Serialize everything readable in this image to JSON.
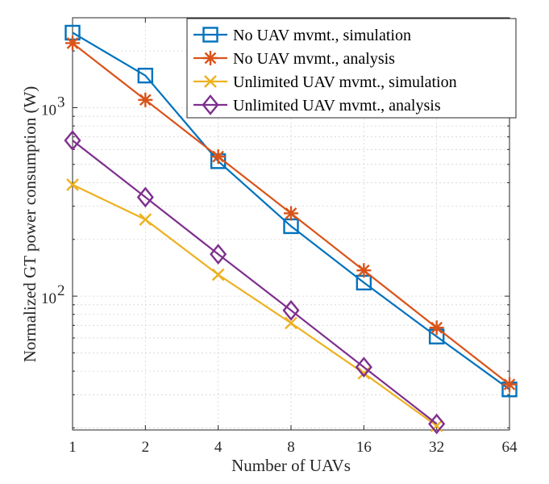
{
  "chart_data": {
    "type": "line",
    "x_scale": "log2",
    "y_scale": "log10",
    "x": [
      1,
      2,
      4,
      8,
      16,
      32,
      64
    ],
    "xticks": [
      1,
      2,
      4,
      8,
      16,
      32,
      64
    ],
    "xtick_labels": [
      "1",
      "2",
      "4",
      "8",
      "16",
      "32",
      "64"
    ],
    "xlim": [
      1,
      64
    ],
    "ylim": [
      19.5,
      3000
    ],
    "yticks": [
      {
        "value": 100,
        "base": "10",
        "exp": "2"
      },
      {
        "value": 1000,
        "base": "10",
        "exp": "3"
      }
    ],
    "xlabel": "Number of UAVs",
    "ylabel": "Normalized GT power consumption (W)",
    "grid": true,
    "legend_position": "top-right",
    "series": [
      {
        "name": "No UAV mvmt., simulation",
        "color": "#0072BD",
        "marker": "square",
        "x": [
          1,
          2,
          4,
          8,
          16,
          32,
          64
        ],
        "values": [
          2500,
          1480,
          520,
          235,
          118,
          61,
          32
        ]
      },
      {
        "name": "No UAV mvmt., analysis",
        "color": "#D95319",
        "marker": "asterisk",
        "x": [
          1,
          2,
          4,
          8,
          16,
          32,
          64
        ],
        "values": [
          2200,
          1100,
          550,
          275,
          137,
          68,
          34
        ]
      },
      {
        "name": "Unlimited UAV mvmt., simulation",
        "color": "#EDB120",
        "marker": "x",
        "x": [
          1,
          2,
          4,
          8,
          16,
          32
        ],
        "values": [
          390,
          255,
          130,
          72,
          39,
          20.5
        ]
      },
      {
        "name": "Unlimited UAV mvmt., analysis",
        "color": "#7E2F8E",
        "marker": "diamond",
        "x": [
          1,
          2,
          4,
          8,
          16,
          32
        ],
        "values": [
          670,
          335,
          167,
          84,
          42,
          21
        ]
      }
    ]
  }
}
